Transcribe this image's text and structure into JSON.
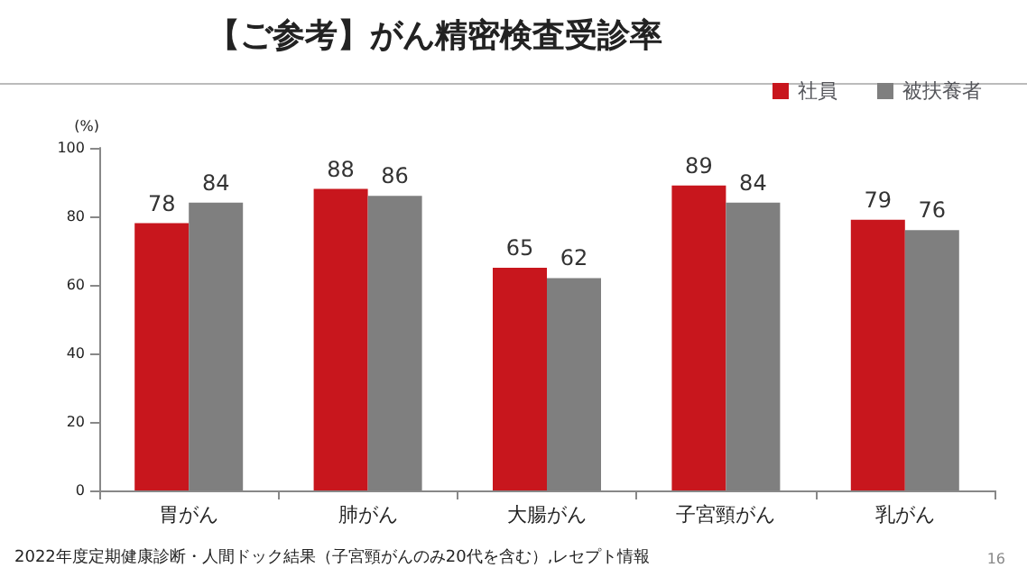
{
  "chart_data": {
    "type": "bar",
    "title": "【ご参考】がん精密検査受診率",
    "ylabel": "(%)",
    "categories": [
      "胃がん",
      "肺がん",
      "大腸がん",
      "子宮頸がん",
      "乳がん"
    ],
    "series": [
      {
        "name": "社員",
        "color": "#c8161d",
        "values": [
          78,
          88,
          65,
          89,
          79
        ]
      },
      {
        "name": "被扶養者",
        "color": "#7f7f7f",
        "values": [
          84,
          86,
          62,
          84,
          76
        ]
      }
    ],
    "ylim": [
      0,
      100
    ],
    "yticks": [
      0,
      20,
      40,
      60,
      80,
      100
    ],
    "grid": false,
    "legend": "top right",
    "data_labels": true,
    "annotations": [
      "2022年度定期健康診断・人間ドック結果（子宮頸がんのみ20代を含む）,レセプト情報",
      "16"
    ]
  }
}
